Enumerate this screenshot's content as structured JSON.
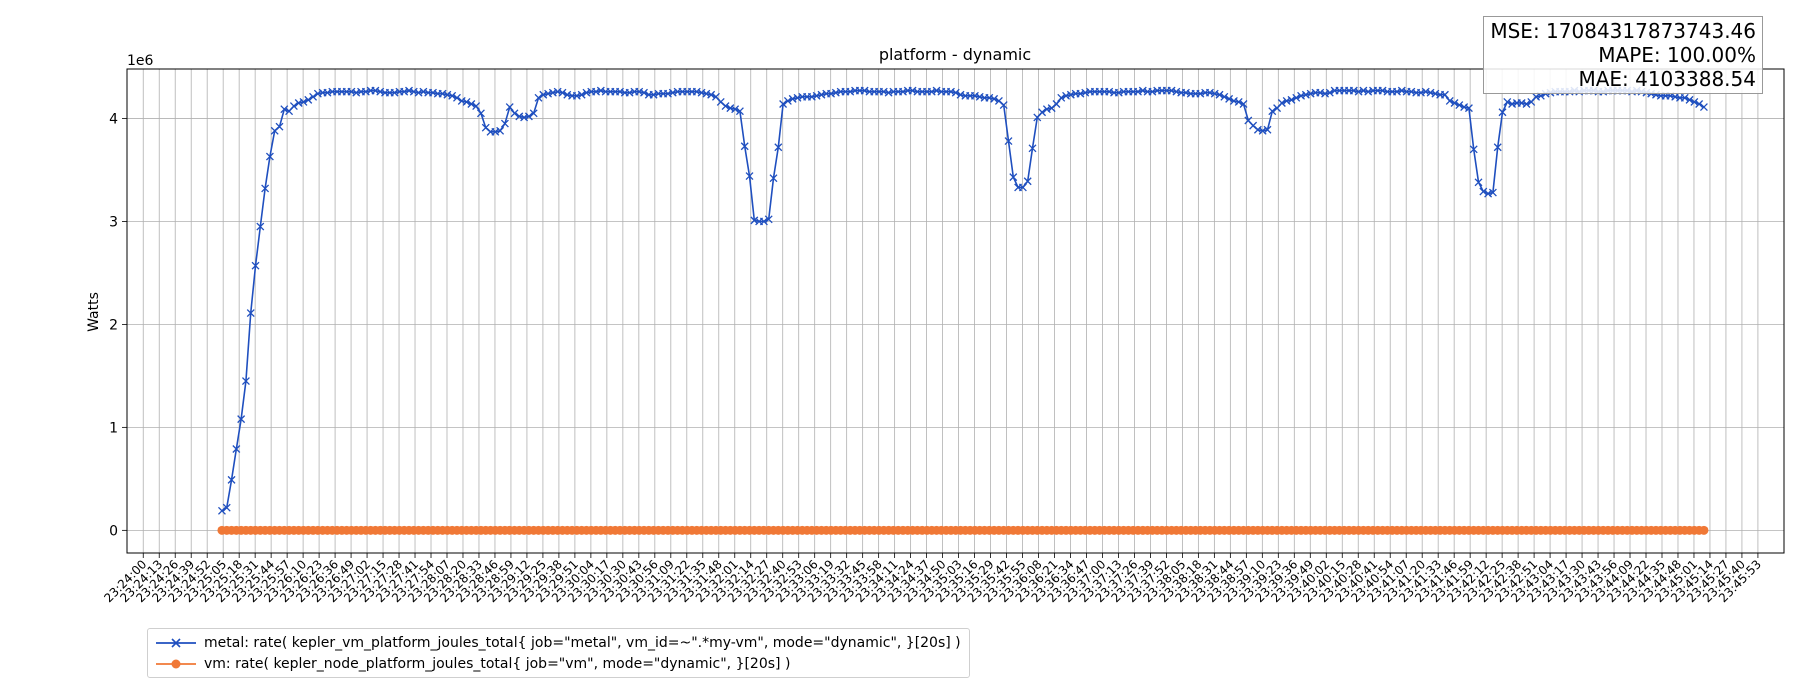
{
  "chart_data": {
    "type": "line",
    "title": "platform - dynamic",
    "xlabel": "",
    "ylabel": "Watts",
    "y_scale_label": "1e6",
    "y_scale": 1000000,
    "ylim": [
      -220000,
      4480000
    ],
    "yticks": [
      0,
      1,
      2,
      3,
      4
    ],
    "grid": true,
    "legend_placement": "bottom-left, below axes",
    "x_start": "23:24:00",
    "x_end": "23:46:01",
    "x_step_seconds": 13,
    "series": [
      {
        "name": "metal: rate( kepler_vm_platform_joules_total{ job=\"metal\", vm_id=~\".*my-vm\", mode=\"dynamic\", }[20s] )",
        "color": "#1f4fbf",
        "marker": "x",
        "start": "23:25:04",
        "interval_seconds": 3.9,
        "values": [
          190000,
          220000,
          490000,
          790000,
          1080000,
          1450000,
          2110000,
          2570000,
          2950000,
          3320000,
          3630000,
          3880000,
          3920000,
          4090000,
          4070000,
          4120000,
          4150000,
          4160000,
          4180000,
          4210000,
          4240000,
          4250000,
          4250000,
          4260000,
          4260000,
          4260000,
          4260000,
          4260000,
          4250000,
          4260000,
          4260000,
          4270000,
          4270000,
          4260000,
          4250000,
          4250000,
          4250000,
          4260000,
          4260000,
          4270000,
          4260000,
          4250000,
          4260000,
          4250000,
          4250000,
          4240000,
          4240000,
          4230000,
          4220000,
          4200000,
          4170000,
          4160000,
          4140000,
          4120000,
          4050000,
          3910000,
          3870000,
          3870000,
          3880000,
          3950000,
          4110000,
          4050000,
          4020000,
          4010000,
          4020000,
          4050000,
          4200000,
          4230000,
          4240000,
          4250000,
          4260000,
          4250000,
          4230000,
          4220000,
          4220000,
          4230000,
          4250000,
          4260000,
          4260000,
          4270000,
          4260000,
          4260000,
          4260000,
          4260000,
          4250000,
          4250000,
          4260000,
          4260000,
          4250000,
          4230000,
          4230000,
          4240000,
          4240000,
          4240000,
          4250000,
          4260000,
          4260000,
          4260000,
          4260000,
          4260000,
          4250000,
          4240000,
          4230000,
          4210000,
          4160000,
          4120000,
          4100000,
          4090000,
          4070000,
          3730000,
          3440000,
          3010000,
          3000000,
          3000000,
          3020000,
          3420000,
          3720000,
          4140000,
          4170000,
          4190000,
          4200000,
          4210000,
          4210000,
          4210000,
          4220000,
          4230000,
          4240000,
          4240000,
          4250000,
          4260000,
          4260000,
          4260000,
          4270000,
          4270000,
          4270000,
          4260000,
          4260000,
          4260000,
          4260000,
          4250000,
          4260000,
          4260000,
          4260000,
          4270000,
          4270000,
          4260000,
          4260000,
          4260000,
          4260000,
          4270000,
          4260000,
          4260000,
          4260000,
          4250000,
          4230000,
          4220000,
          4220000,
          4220000,
          4210000,
          4200000,
          4200000,
          4190000,
          4170000,
          4130000,
          3780000,
          3430000,
          3330000,
          3330000,
          3390000,
          3710000,
          4010000,
          4060000,
          4090000,
          4100000,
          4140000,
          4200000,
          4220000,
          4230000,
          4240000,
          4240000,
          4250000,
          4260000,
          4260000,
          4260000,
          4260000,
          4260000,
          4250000,
          4250000,
          4260000,
          4260000,
          4260000,
          4260000,
          4270000,
          4260000,
          4260000,
          4270000,
          4270000,
          4270000,
          4270000,
          4260000,
          4250000,
          4250000,
          4240000,
          4240000,
          4240000,
          4250000,
          4250000,
          4240000,
          4230000,
          4210000,
          4190000,
          4170000,
          4160000,
          4140000,
          3980000,
          3930000,
          3890000,
          3880000,
          3890000,
          4070000,
          4100000,
          4150000,
          4170000,
          4180000,
          4200000,
          4220000,
          4230000,
          4240000,
          4250000,
          4250000,
          4240000,
          4250000,
          4270000,
          4270000,
          4270000,
          4270000,
          4270000,
          4260000,
          4270000,
          4260000,
          4270000,
          4270000,
          4270000,
          4260000,
          4260000,
          4260000,
          4270000,
          4260000,
          4260000,
          4250000,
          4250000,
          4260000,
          4250000,
          4240000,
          4230000,
          4230000,
          4170000,
          4150000,
          4130000,
          4110000,
          4100000,
          3700000,
          3380000,
          3290000,
          3270000,
          3280000,
          3720000,
          4060000,
          4160000,
          4140000,
          4150000,
          4150000,
          4140000,
          4160000,
          4210000,
          4220000,
          4240000,
          4250000,
          4260000,
          4260000,
          4260000,
          4260000,
          4270000,
          4260000,
          4270000,
          4270000,
          4270000,
          4260000,
          4260000,
          4270000,
          4270000,
          4270000,
          4270000,
          4270000,
          4260000,
          4270000,
          4260000,
          4250000,
          4240000,
          4230000,
          4220000,
          4220000,
          4220000,
          4210000,
          4200000,
          4200000,
          4180000,
          4160000,
          4140000,
          4110000
        ]
      },
      {
        "name": "vm: rate( kepler_node_platform_joules_total{ job=\"vm\", mode=\"dynamic\", }[20s] )",
        "color": "#f07836",
        "marker": "o",
        "start": "23:25:04",
        "end": "23:45:10",
        "constant_value": 0
      }
    ]
  },
  "metrics": {
    "mse": "MSE: 17084317873743.46",
    "mape": "MAPE: 100.00%",
    "mae": "MAE: 4103388.54"
  }
}
